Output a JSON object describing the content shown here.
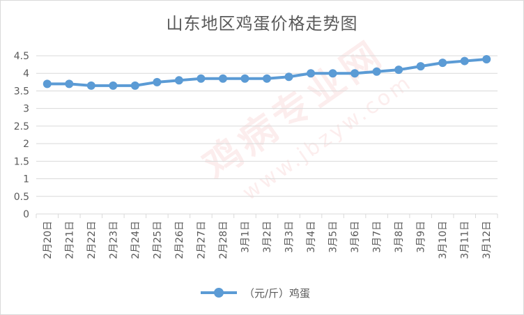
{
  "chart_data": {
    "type": "line",
    "title": "山东地区鸡蛋价格走势图",
    "categories": [
      "2月20日",
      "2月21日",
      "2月22日",
      "2月23日",
      "2月24日",
      "2月25日",
      "2月26日",
      "2月27日",
      "2月28日",
      "3月1日",
      "3月2日",
      "3月3日",
      "3月4日",
      "3月5日",
      "3月6日",
      "3月7日",
      "3月8日",
      "3月9日",
      "3月10日",
      "3月11日",
      "3月12日"
    ],
    "series": [
      {
        "name": "（元/斤）鸡蛋",
        "values": [
          3.7,
          3.7,
          3.65,
          3.65,
          3.65,
          3.75,
          3.8,
          3.85,
          3.85,
          3.85,
          3.85,
          3.9,
          4.0,
          4.0,
          4.0,
          4.05,
          4.1,
          4.2,
          4.3,
          4.35,
          4.4
        ]
      }
    ],
    "ylim": [
      0,
      4.5
    ],
    "yticks": [
      "0",
      "0.5",
      "1",
      "1.5",
      "2",
      "2.5",
      "3",
      "3.5",
      "4",
      "4.5"
    ],
    "grid": true,
    "legend": "bottom",
    "color": "#5b9bd5"
  },
  "watermark": {
    "main": "鸡病专业网",
    "sub": "www.jbzyw.com"
  }
}
